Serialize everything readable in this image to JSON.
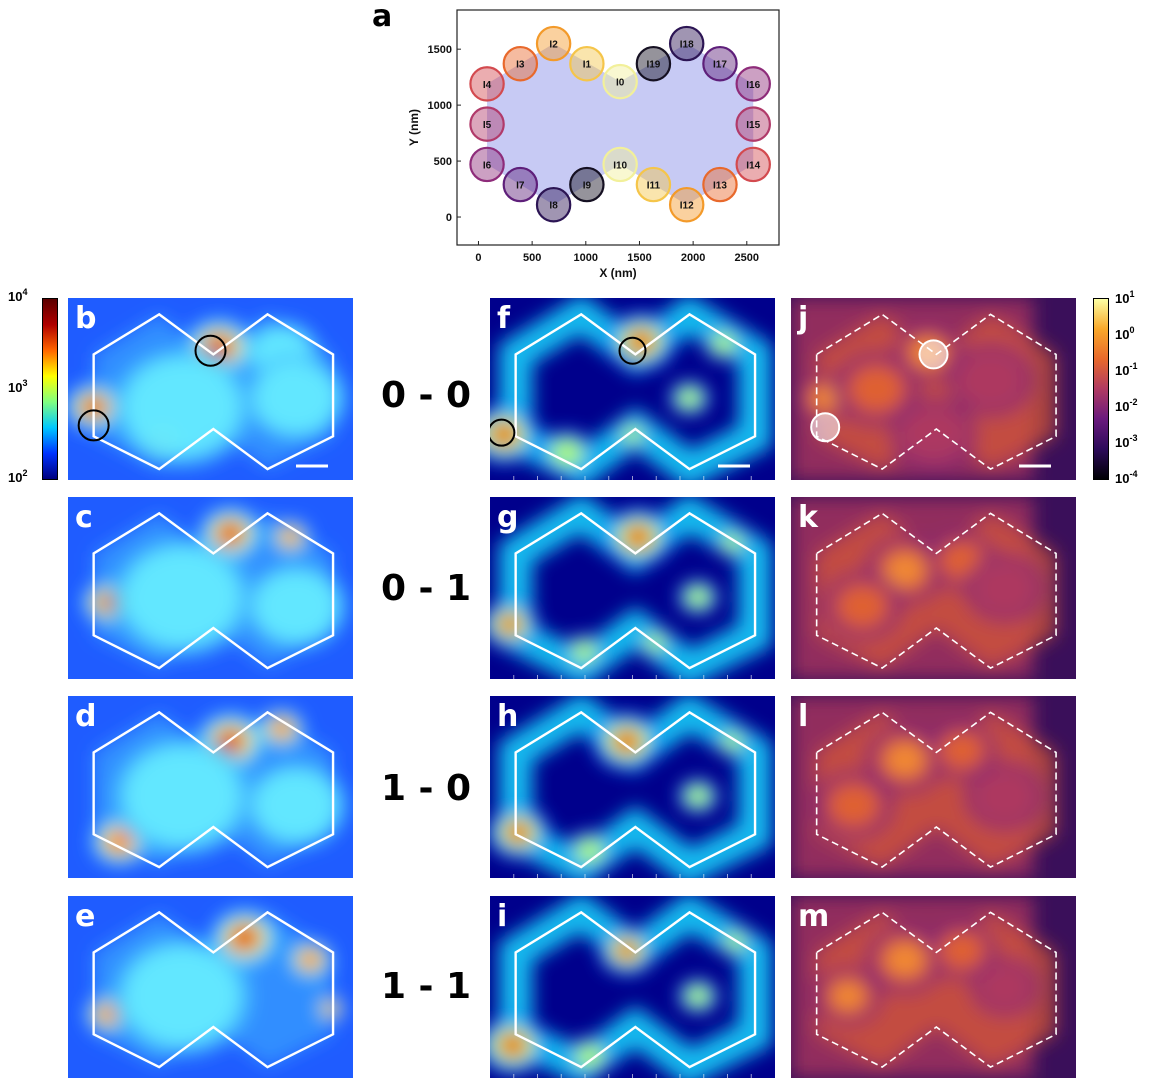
{
  "panel_a": {
    "letter": "a",
    "xlabel": "X (nm)",
    "ylabel": "Y (nm)",
    "xticks": [
      "0",
      "500",
      "1000",
      "1500",
      "2000",
      "2500"
    ],
    "yticks": [
      "0",
      "500",
      "1000",
      "1500"
    ],
    "xlim": [
      -200,
      2800
    ],
    "ylim": [
      -250,
      1850
    ],
    "region_color": "#b4b8f0",
    "islands": [
      {
        "label": "I0",
        "x": 1320,
        "y": 1210,
        "color": "#f2f09a"
      },
      {
        "label": "I1",
        "x": 1010,
        "y": 1370,
        "color": "#f5c54a"
      },
      {
        "label": "I2",
        "x": 700,
        "y": 1550,
        "color": "#f39a2a"
      },
      {
        "label": "I3",
        "x": 390,
        "y": 1370,
        "color": "#e8692c"
      },
      {
        "label": "I4",
        "x": 80,
        "y": 1190,
        "color": "#d34a4f"
      },
      {
        "label": "I5",
        "x": 80,
        "y": 830,
        "color": "#b13a6a"
      },
      {
        "label": "I6",
        "x": 80,
        "y": 470,
        "color": "#8e2c7a"
      },
      {
        "label": "I7",
        "x": 390,
        "y": 290,
        "color": "#5e1f7a"
      },
      {
        "label": "I8",
        "x": 700,
        "y": 110,
        "color": "#2c1554"
      },
      {
        "label": "I9",
        "x": 1010,
        "y": 290,
        "color": "#151022"
      },
      {
        "label": "I10",
        "x": 1320,
        "y": 470,
        "color": "#f2f09a"
      },
      {
        "label": "I11",
        "x": 1630,
        "y": 290,
        "color": "#f5c54a"
      },
      {
        "label": "I12",
        "x": 1940,
        "y": 110,
        "color": "#f39a2a"
      },
      {
        "label": "I13",
        "x": 2250,
        "y": 290,
        "color": "#e8692c"
      },
      {
        "label": "I14",
        "x": 2560,
        "y": 470,
        "color": "#d34a4f"
      },
      {
        "label": "I15",
        "x": 2560,
        "y": 830,
        "color": "#b13a6a"
      },
      {
        "label": "I16",
        "x": 2560,
        "y": 1190,
        "color": "#8e2c7a"
      },
      {
        "label": "I17",
        "x": 2250,
        "y": 1370,
        "color": "#5e1f7a"
      },
      {
        "label": "I18",
        "x": 1940,
        "y": 1550,
        "color": "#2c1554"
      },
      {
        "label": "I19",
        "x": 1630,
        "y": 1370,
        "color": "#151022"
      }
    ]
  },
  "row_labels": [
    "0 - 0",
    "0 - 1",
    "1 - 0",
    "1 - 1"
  ],
  "left_colorbar": {
    "ticks": [
      {
        "base": "10",
        "exp": "4"
      },
      {
        "base": "10",
        "exp": "3"
      },
      {
        "base": "10",
        "exp": "2"
      }
    ],
    "colors": [
      "#00007f",
      "#0033ff",
      "#00c8ff",
      "#80ff80",
      "#ffff00",
      "#ff6600",
      "#b00000",
      "#5a0000"
    ]
  },
  "right_colorbar": {
    "ticks": [
      {
        "base": "10",
        "exp": "1"
      },
      {
        "base": "10",
        "exp": "0"
      },
      {
        "base": "10",
        "exp": "-1"
      },
      {
        "base": "10",
        "exp": "-2"
      },
      {
        "base": "10",
        "exp": "-3"
      },
      {
        "base": "10",
        "exp": "-4"
      }
    ],
    "colors": [
      "#000004",
      "#2d0b5a",
      "#6a1a7d",
      "#b03a62",
      "#e8692c",
      "#f9a82a",
      "#fcffa4"
    ]
  },
  "columns": {
    "jet_letters": [
      "b",
      "c",
      "d",
      "e"
    ],
    "jet2_letters": [
      "f",
      "g",
      "h",
      "i"
    ],
    "inferno_letters": [
      "j",
      "k",
      "l",
      "m"
    ]
  }
}
